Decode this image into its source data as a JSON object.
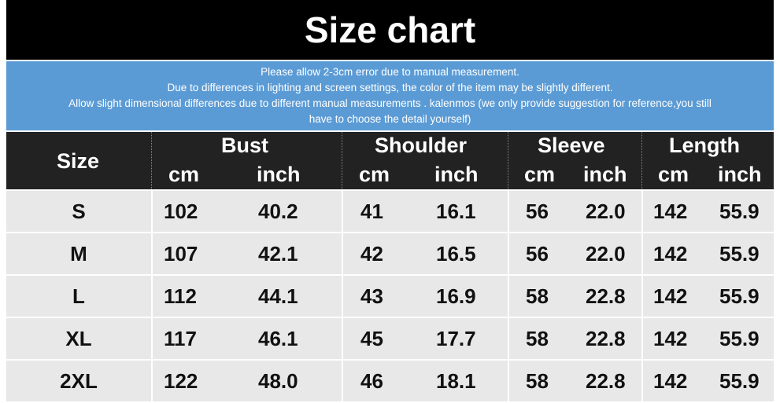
{
  "title": "Size chart",
  "notice": [
    "Please allow 2-3cm error due to manual measurement.",
    "Due to differences in lighting and screen settings, the color of the item may be slightly different.",
    "Allow slight dimensional differences due to different manual measurements . kalenmos (we only provide suggestion for reference,you still",
    "have to choose the detail yourself)"
  ],
  "header": {
    "size": "Size",
    "groups": [
      "Bust",
      "Shoulder",
      "Sleeve",
      "Length"
    ],
    "units": [
      "cm",
      "inch",
      "cm",
      "inch",
      "cm",
      "inch",
      "cm",
      "inch"
    ]
  },
  "rows": [
    {
      "size": "S",
      "values": [
        "102",
        "40.2",
        "41",
        "16.1",
        "56",
        "22.0",
        "142",
        "55.9"
      ]
    },
    {
      "size": "M",
      "values": [
        "107",
        "42.1",
        "42",
        "16.5",
        "56",
        "22.0",
        "142",
        "55.9"
      ]
    },
    {
      "size": "L",
      "values": [
        "112",
        "44.1",
        "43",
        "16.9",
        "58",
        "22.8",
        "142",
        "55.9"
      ]
    },
    {
      "size": "XL",
      "values": [
        "117",
        "46.1",
        "45",
        "17.7",
        "58",
        "22.8",
        "142",
        "55.9"
      ]
    },
    {
      "size": "2XL",
      "values": [
        "122",
        "48.0",
        "46",
        "18.1",
        "58",
        "22.8",
        "142",
        "55.9"
      ]
    }
  ]
}
